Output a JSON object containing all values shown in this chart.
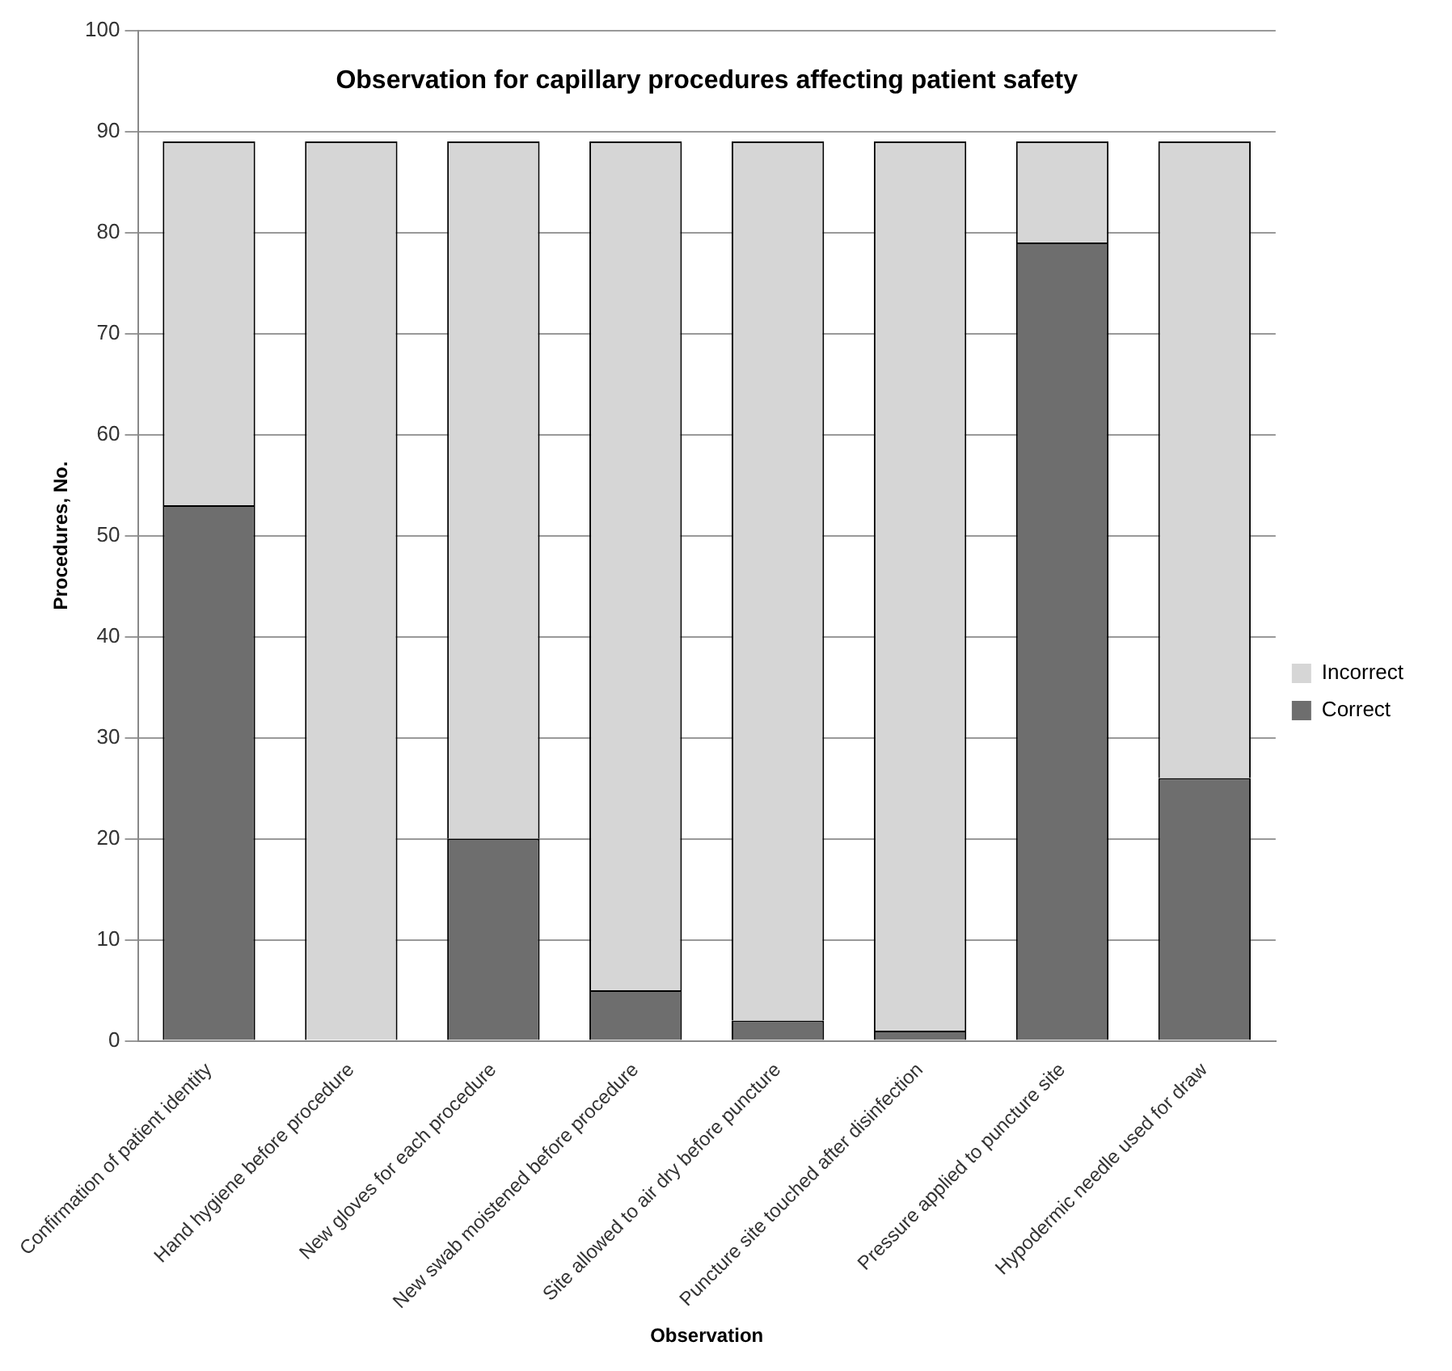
{
  "chart_data": {
    "type": "bar",
    "title": "Observation for capillary procedures affecting patient safety",
    "xlabel": "Observation",
    "ylabel": "Procedures, No.",
    "categories": [
      "Confirmation of patient identity",
      "Hand hygiene before procedure",
      "New gloves for each procedure",
      "New swab moistened before procedure",
      "Site allowed to air dry before puncture",
      "Puncture site touched after disinfection",
      "Pressure applied to puncture site",
      "Hypodermic needle used for draw"
    ],
    "stacked": true,
    "series": [
      {
        "name": "Correct",
        "color": "#6e6e6e",
        "values": [
          53,
          0,
          20,
          5,
          2,
          1,
          79,
          26
        ]
      },
      {
        "name": "Incorrect",
        "color": "#d6d6d6",
        "values": [
          36,
          89,
          69,
          84,
          87,
          88,
          10,
          63
        ]
      }
    ],
    "ylim": [
      0,
      100
    ],
    "yticks": [
      0,
      10,
      20,
      30,
      40,
      50,
      60,
      70,
      80,
      90,
      100
    ],
    "grid": "y",
    "legend": "right"
  }
}
